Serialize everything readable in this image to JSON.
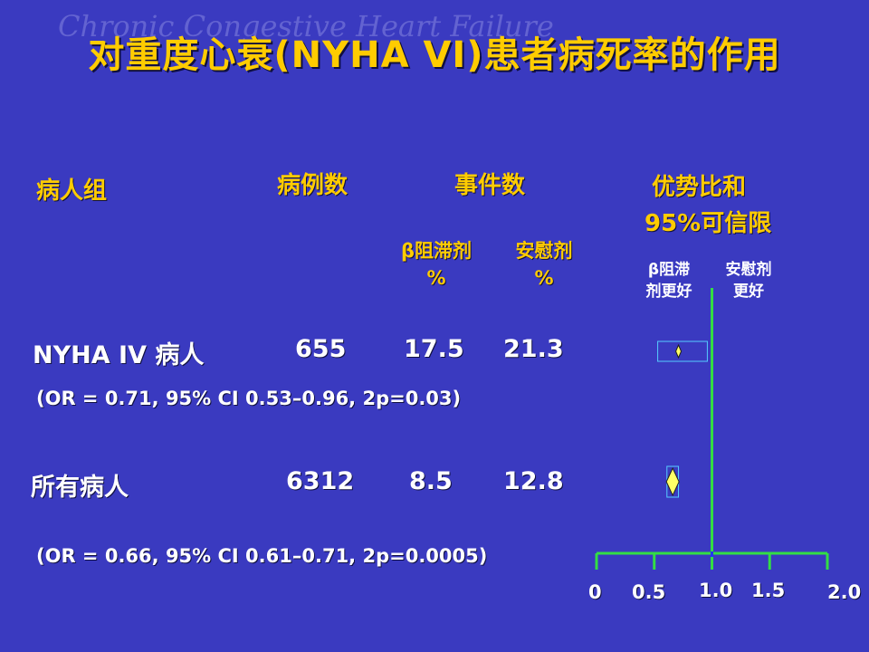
{
  "watermark": "Chronic Congestive Heart Failure",
  "title": "对重度心衰(NYHA VI)患者病死率的作用",
  "headers": {
    "group": "病人组",
    "cases": "病例数",
    "events": "事件数",
    "or_line1": "优势比和",
    "or_line2": "95%可信限",
    "beta_line1": "β阻滞剂",
    "beta_line2": "%",
    "placebo_line1": "安慰剂",
    "placebo_line2": "%",
    "favors_beta_line1": "β阻滞",
    "favors_beta_line2": "剂更好",
    "favors_placebo_line1": "安慰剂",
    "favors_placebo_line2": "更好"
  },
  "rows": [
    {
      "group": "NYHA IV 病人",
      "cases": "655",
      "beta": "17.5",
      "placebo": "21.3",
      "note": "(OR = 0.71, 95% CI 0.53–0.96, 2p=0.03)"
    },
    {
      "group": "所有病人",
      "cases": "6312",
      "beta": "8.5",
      "placebo": "12.8",
      "note": "(OR = 0.66, 95% CI  0.61–0.71, 2p=0.0005)"
    }
  ],
  "axis_ticks": [
    "0",
    "0.5",
    "1.0",
    "1.5",
    "2.0"
  ],
  "colors": {
    "background": "#3a3ac0",
    "title": "#ffcc00",
    "axis": "#33dd44",
    "marker": "#ffff66",
    "box": "#55ccff"
  },
  "chart_data": {
    "type": "forest",
    "xlim": [
      0,
      2.0
    ],
    "reference_line": 1.0,
    "x_ticks": [
      0,
      0.5,
      1.0,
      1.5,
      2.0
    ],
    "series": [
      {
        "name": "NYHA IV 病人",
        "or": 0.71,
        "ci_low": 0.53,
        "ci_high": 0.96,
        "p": "2p=0.03"
      },
      {
        "name": "所有病人",
        "or": 0.66,
        "ci_low": 0.61,
        "ci_high": 0.71,
        "p": "2p=0.0005"
      }
    ]
  }
}
